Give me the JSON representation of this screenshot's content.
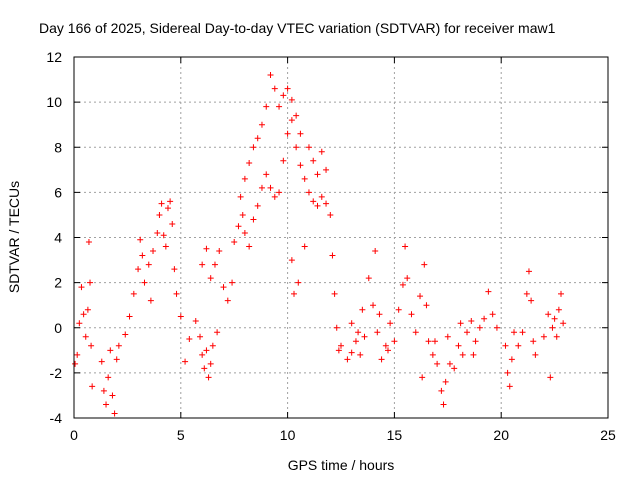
{
  "chart_data": {
    "type": "scatter",
    "title": "Day 166 of 2025, Sidereal Day-to-day VTEC variation (SDTVAR) for receiver maw1",
    "xlabel": "GPS time / hours",
    "ylabel": "SDTVAR / TECUs",
    "xlim": [
      0,
      25
    ],
    "ylim": [
      -4,
      12
    ],
    "xticks": [
      "0",
      "5",
      "10",
      "15",
      "20",
      "25"
    ],
    "yticks": [
      "-4",
      "-2",
      "0",
      "2",
      "4",
      "6",
      "8",
      "10",
      "12"
    ],
    "grid": true,
    "marker": "+",
    "color": "#ff0000",
    "series": [
      {
        "name": "SDTVAR",
        "points": [
          [
            0.05,
            -1.6
          ],
          [
            0.15,
            -1.2
          ],
          [
            0.25,
            0.2
          ],
          [
            0.35,
            1.8
          ],
          [
            0.45,
            0.6
          ],
          [
            0.55,
            -0.4
          ],
          [
            0.65,
            0.8
          ],
          [
            0.7,
            3.8
          ],
          [
            0.75,
            2.0
          ],
          [
            0.8,
            -0.8
          ],
          [
            0.85,
            -2.6
          ],
          [
            1.3,
            -1.5
          ],
          [
            1.4,
            -2.8
          ],
          [
            1.5,
            -3.4
          ],
          [
            1.6,
            -2.2
          ],
          [
            1.7,
            -1.0
          ],
          [
            1.8,
            -3.0
          ],
          [
            1.9,
            -3.8
          ],
          [
            2.0,
            -1.4
          ],
          [
            2.1,
            -0.8
          ],
          [
            2.4,
            -0.3
          ],
          [
            2.6,
            0.5
          ],
          [
            2.8,
            1.5
          ],
          [
            3.0,
            2.6
          ],
          [
            3.1,
            3.9
          ],
          [
            3.2,
            3.2
          ],
          [
            3.3,
            2.0
          ],
          [
            3.5,
            2.8
          ],
          [
            3.6,
            1.2
          ],
          [
            3.7,
            3.4
          ],
          [
            3.9,
            4.2
          ],
          [
            4.0,
            5.0
          ],
          [
            4.1,
            5.5
          ],
          [
            4.2,
            4.1
          ],
          [
            4.3,
            3.6
          ],
          [
            4.4,
            5.3
          ],
          [
            4.5,
            5.6
          ],
          [
            4.6,
            4.6
          ],
          [
            4.7,
            2.6
          ],
          [
            4.8,
            1.5
          ],
          [
            5.0,
            0.5
          ],
          [
            5.2,
            -1.5
          ],
          [
            5.4,
            -0.5
          ],
          [
            5.7,
            0.3
          ],
          [
            5.9,
            -0.4
          ],
          [
            6.0,
            -1.2
          ],
          [
            6.1,
            -1.8
          ],
          [
            6.2,
            -1.0
          ],
          [
            6.3,
            -2.2
          ],
          [
            6.4,
            -1.6
          ],
          [
            6.5,
            -0.8
          ],
          [
            6.7,
            -0.2
          ],
          [
            6.0,
            2.8
          ],
          [
            6.2,
            3.5
          ],
          [
            6.4,
            2.2
          ],
          [
            6.6,
            2.8
          ],
          [
            6.8,
            3.4
          ],
          [
            7.0,
            1.8
          ],
          [
            7.2,
            1.2
          ],
          [
            7.4,
            2.0
          ],
          [
            7.5,
            3.8
          ],
          [
            7.7,
            4.5
          ],
          [
            7.9,
            5.0
          ],
          [
            8.0,
            4.2
          ],
          [
            8.2,
            3.6
          ],
          [
            8.4,
            4.8
          ],
          [
            8.6,
            5.4
          ],
          [
            8.8,
            6.2
          ],
          [
            9.0,
            6.8
          ],
          [
            9.2,
            6.2
          ],
          [
            9.4,
            5.8
          ],
          [
            7.8,
            5.8
          ],
          [
            8.0,
            6.6
          ],
          [
            8.2,
            7.3
          ],
          [
            8.4,
            8.0
          ],
          [
            8.6,
            8.4
          ],
          [
            8.8,
            9.0
          ],
          [
            9.0,
            9.8
          ],
          [
            9.2,
            11.2
          ],
          [
            9.4,
            10.6
          ],
          [
            9.6,
            9.8
          ],
          [
            9.8,
            10.3
          ],
          [
            10.0,
            10.6
          ],
          [
            10.2,
            10.1
          ],
          [
            10.4,
            9.4
          ],
          [
            10.6,
            8.6
          ],
          [
            9.6,
            6.0
          ],
          [
            9.8,
            7.4
          ],
          [
            10.0,
            8.6
          ],
          [
            10.2,
            9.2
          ],
          [
            10.4,
            8.0
          ],
          [
            10.6,
            7.2
          ],
          [
            10.8,
            6.6
          ],
          [
            11.0,
            6.0
          ],
          [
            11.2,
            5.6
          ],
          [
            11.4,
            5.4
          ],
          [
            11.6,
            5.8
          ],
          [
            11.8,
            5.5
          ],
          [
            11.0,
            8.0
          ],
          [
            11.2,
            7.4
          ],
          [
            11.4,
            6.8
          ],
          [
            11.6,
            7.8
          ],
          [
            11.8,
            7.0
          ],
          [
            12.0,
            5.0
          ],
          [
            12.1,
            3.2
          ],
          [
            12.2,
            1.5
          ],
          [
            12.3,
            0.0
          ],
          [
            12.4,
            -1.0
          ],
          [
            10.2,
            3.0
          ],
          [
            10.3,
            1.5
          ],
          [
            10.5,
            2.0
          ],
          [
            10.8,
            3.6
          ],
          [
            12.5,
            -0.8
          ],
          [
            12.8,
            -1.4
          ],
          [
            13.0,
            -1.1
          ],
          [
            13.2,
            -0.6
          ],
          [
            13.4,
            -1.2
          ],
          [
            13.6,
            -0.4
          ],
          [
            13.8,
            2.2
          ],
          [
            14.0,
            1.0
          ],
          [
            14.2,
            -0.2
          ],
          [
            14.4,
            -1.4
          ],
          [
            14.6,
            -0.8
          ],
          [
            14.8,
            0.2
          ],
          [
            15.0,
            -0.6
          ],
          [
            15.2,
            0.8
          ],
          [
            15.4,
            1.9
          ],
          [
            15.5,
            3.6
          ],
          [
            15.6,
            2.2
          ],
          [
            15.8,
            0.6
          ],
          [
            13.0,
            0.2
          ],
          [
            13.3,
            -0.2
          ],
          [
            13.5,
            0.8
          ],
          [
            14.1,
            3.4
          ],
          [
            14.3,
            0.6
          ],
          [
            14.7,
            -1.0
          ],
          [
            16.0,
            -0.2
          ],
          [
            16.2,
            1.4
          ],
          [
            16.4,
            2.8
          ],
          [
            16.5,
            1.0
          ],
          [
            16.6,
            -0.6
          ],
          [
            16.8,
            -1.2
          ],
          [
            17.0,
            -1.6
          ],
          [
            17.2,
            -2.8
          ],
          [
            17.3,
            -3.4
          ],
          [
            17.4,
            -2.4
          ],
          [
            17.6,
            -1.6
          ],
          [
            17.8,
            -1.8
          ],
          [
            18.0,
            -0.8
          ],
          [
            18.2,
            -1.2
          ],
          [
            18.4,
            -0.2
          ],
          [
            18.6,
            0.3
          ],
          [
            18.8,
            -0.6
          ],
          [
            19.0,
            0.0
          ],
          [
            19.2,
            0.4
          ],
          [
            19.4,
            1.6
          ],
          [
            19.6,
            0.6
          ],
          [
            19.8,
            0.0
          ],
          [
            16.3,
            -2.2
          ],
          [
            16.9,
            -0.6
          ],
          [
            17.5,
            -0.4
          ],
          [
            18.1,
            0.2
          ],
          [
            18.7,
            -1.2
          ],
          [
            20.2,
            -0.8
          ],
          [
            20.3,
            -2.0
          ],
          [
            20.4,
            -2.6
          ],
          [
            20.5,
            -1.4
          ],
          [
            20.6,
            -0.2
          ],
          [
            20.8,
            -0.8
          ],
          [
            21.0,
            -0.2
          ],
          [
            21.2,
            1.5
          ],
          [
            21.3,
            2.5
          ],
          [
            21.4,
            1.2
          ],
          [
            21.5,
            -0.6
          ],
          [
            21.6,
            -1.2
          ],
          [
            22.0,
            -0.4
          ],
          [
            22.2,
            0.6
          ],
          [
            22.3,
            -2.2
          ],
          [
            22.4,
            0.0
          ],
          [
            22.5,
            0.4
          ],
          [
            22.6,
            -0.4
          ],
          [
            22.7,
            0.8
          ],
          [
            22.8,
            1.5
          ],
          [
            22.9,
            0.2
          ]
        ]
      }
    ]
  }
}
